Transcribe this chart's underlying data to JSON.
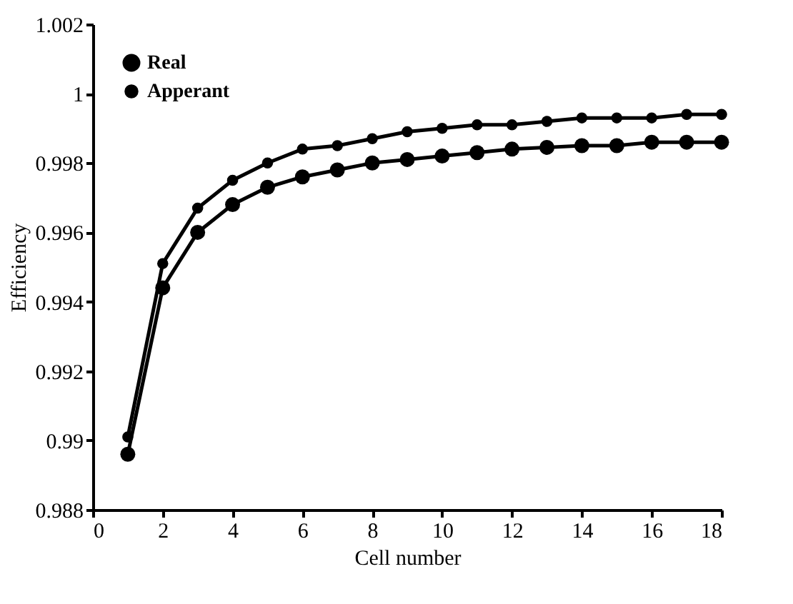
{
  "chart_data": {
    "type": "line",
    "xlabel": "Cell number",
    "ylabel": "Efficiency",
    "x": [
      1,
      2,
      3,
      4,
      5,
      6,
      7,
      8,
      9,
      10,
      11,
      12,
      13,
      14,
      15,
      16,
      17,
      18
    ],
    "series": [
      {
        "name": "Real",
        "color": "#000000",
        "values": [
          0.9896,
          0.9944,
          0.996,
          0.9968,
          0.9973,
          0.9976,
          0.9978,
          0.998,
          0.9981,
          0.9982,
          0.9983,
          0.9984,
          0.99845,
          0.9985,
          0.9985,
          0.9986,
          0.9986,
          0.9986
        ]
      },
      {
        "name": "Apperant",
        "color": "#000000",
        "values": [
          0.9901,
          0.9951,
          0.9967,
          0.9975,
          0.998,
          0.9984,
          0.9985,
          0.9987,
          0.9989,
          0.999,
          0.9991,
          0.9991,
          0.9992,
          0.9993,
          0.9993,
          0.9993,
          0.9994,
          0.9994
        ]
      }
    ],
    "xlim": [
      0,
      18
    ],
    "xticks": [
      0,
      2,
      4,
      6,
      8,
      10,
      12,
      14,
      16,
      18
    ],
    "ylim": [
      0.988,
      1.002
    ],
    "yticks": [
      0.988,
      0.99,
      0.992,
      0.994,
      0.996,
      0.998,
      1,
      1.002
    ],
    "marker": "circle",
    "line_style": "solid",
    "legend": "top left",
    "grid": false
  }
}
